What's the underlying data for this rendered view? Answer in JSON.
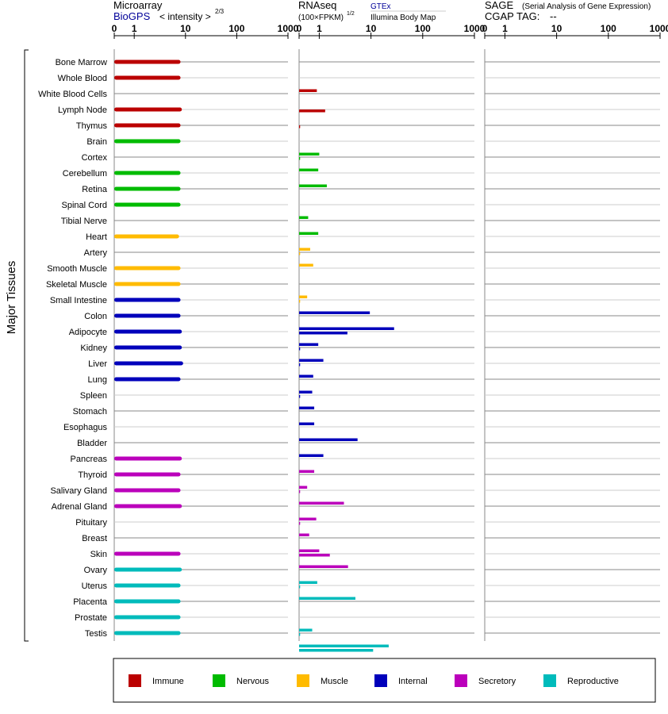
{
  "panels": {
    "microarray": {
      "title": "Microarray",
      "source": "BioGPS",
      "unit": "< intensity >",
      "unit_exp": "2/3",
      "ticks": [
        "0",
        "1",
        "10",
        "100",
        "1000"
      ]
    },
    "rnaseq": {
      "title": "RNAseq",
      "unit": "(100×FPKM)",
      "unit_exp": "1/2",
      "source_primary": "GTEx",
      "source_secondary": "Illumina Body Map",
      "ticks": [
        "0",
        "1",
        "10",
        "100",
        "1000"
      ]
    },
    "sage": {
      "title": "SAGE",
      "subtitle": "(Serial Analysis of Gene Expression)",
      "tag_label": "CGAP TAG:",
      "tag_value": "--",
      "ticks": [
        "0",
        "1",
        "10",
        "100",
        "1000"
      ]
    }
  },
  "y_axis_label": "Major Tissues",
  "colors": {
    "Immune": "#bb0000",
    "Nervous": "#00bb00",
    "Muscle": "#ffbb00",
    "Internal": "#0000bb",
    "Secretory": "#bb00bb",
    "Reproductive": "#00bbbb"
  },
  "legend": [
    "Immune",
    "Nervous",
    "Muscle",
    "Internal",
    "Secretory",
    "Reproductive"
  ],
  "chart_data": {
    "type": "bar",
    "scale": "symlog",
    "xlim": [
      0,
      1000
    ],
    "series": [
      {
        "name": "Microarray BioGPS"
      },
      {
        "name": "GTEx"
      },
      {
        "name": "Illumina Body Map"
      },
      {
        "name": "SAGE"
      }
    ],
    "tissues": [
      {
        "name": "Bone Marrow",
        "group": "Immune",
        "microarray": 8,
        "gtex": null,
        "ibm": null
      },
      {
        "name": "Whole Blood",
        "group": "Immune",
        "microarray": 8,
        "gtex": 0.88,
        "ibm": null
      },
      {
        "name": "White Blood Cells",
        "group": "Immune",
        "microarray": null,
        "gtex": null,
        "ibm": 1.3
      },
      {
        "name": "Lymph Node",
        "group": "Immune",
        "microarray": 8.5,
        "gtex": null,
        "ibm": 0.05
      },
      {
        "name": "Thymus",
        "group": "Immune",
        "microarray": 8,
        "gtex": null,
        "ibm": null
      },
      {
        "name": "Brain",
        "group": "Nervous",
        "microarray": 8,
        "gtex": 1.0,
        "ibm": 0.05
      },
      {
        "name": "Cortex",
        "group": "Nervous",
        "microarray": null,
        "gtex": 0.95,
        "ibm": null
      },
      {
        "name": "Cerebellum",
        "group": "Nervous",
        "microarray": 8,
        "gtex": 1.4,
        "ibm": null
      },
      {
        "name": "Retina",
        "group": "Nervous",
        "microarray": 8,
        "gtex": null,
        "ibm": null
      },
      {
        "name": "Spinal Cord",
        "group": "Nervous",
        "microarray": 8,
        "gtex": 0.45,
        "ibm": null
      },
      {
        "name": "Tibial Nerve",
        "group": "Nervous",
        "microarray": null,
        "gtex": 0.95,
        "ibm": null
      },
      {
        "name": "Heart",
        "group": "Muscle",
        "microarray": 7.5,
        "gtex": 0.55,
        "ibm": 0.05
      },
      {
        "name": "Artery",
        "group": "Muscle",
        "microarray": null,
        "gtex": 0.7,
        "ibm": null
      },
      {
        "name": "Smooth Muscle",
        "group": "Muscle",
        "microarray": 8,
        "gtex": null,
        "ibm": null
      },
      {
        "name": "Skeletal Muscle",
        "group": "Muscle",
        "microarray": 8,
        "gtex": 0.4,
        "ibm": 0.05
      },
      {
        "name": "Small Intestine",
        "group": "Internal",
        "microarray": 8,
        "gtex": 9.5,
        "ibm": null
      },
      {
        "name": "Colon",
        "group": "Internal",
        "microarray": 8,
        "gtex": 28,
        "ibm": 3.5
      },
      {
        "name": "Adipocyte",
        "group": "Internal",
        "microarray": 8.5,
        "gtex": 0.95,
        "ibm": 0.05
      },
      {
        "name": "Kidney",
        "group": "Internal",
        "microarray": 8.5,
        "gtex": 1.2,
        "ibm": 0.05
      },
      {
        "name": "Liver",
        "group": "Internal",
        "microarray": 9,
        "gtex": 0.7,
        "ibm": null
      },
      {
        "name": "Lung",
        "group": "Internal",
        "microarray": 8,
        "gtex": 0.65,
        "ibm": 0.05
      },
      {
        "name": "Spleen",
        "group": "Internal",
        "microarray": null,
        "gtex": 0.75,
        "ibm": null
      },
      {
        "name": "Stomach",
        "group": "Internal",
        "microarray": null,
        "gtex": 0.75,
        "ibm": null
      },
      {
        "name": "Esophagus",
        "group": "Internal",
        "microarray": null,
        "gtex": 5.5,
        "ibm": null
      },
      {
        "name": "Bladder",
        "group": "Internal",
        "microarray": null,
        "gtex": 1.2,
        "ibm": null
      },
      {
        "name": "Pancreas",
        "group": "Secretory",
        "microarray": 8.5,
        "gtex": 0.75,
        "ibm": null
      },
      {
        "name": "Thyroid",
        "group": "Secretory",
        "microarray": 8,
        "gtex": 0.4,
        "ibm": 0.05
      },
      {
        "name": "Salivary Gland",
        "group": "Secretory",
        "microarray": 8,
        "gtex": 3.0,
        "ibm": null
      },
      {
        "name": "Adrenal Gland",
        "group": "Secretory",
        "microarray": 8.5,
        "gtex": 0.85,
        "ibm": 0.05
      },
      {
        "name": "Pituitary",
        "group": "Secretory",
        "microarray": null,
        "gtex": 0.5,
        "ibm": null
      },
      {
        "name": "Breast",
        "group": "Secretory",
        "microarray": null,
        "gtex": 1.0,
        "ibm": 1.6
      },
      {
        "name": "Skin",
        "group": "Secretory",
        "microarray": 8,
        "gtex": 3.6,
        "ibm": null
      },
      {
        "name": "Ovary",
        "group": "Reproductive",
        "microarray": 8.5,
        "gtex": 0.9,
        "ibm": 0.05
      },
      {
        "name": "Uterus",
        "group": "Reproductive",
        "microarray": 8,
        "gtex": 5.0,
        "ibm": null
      },
      {
        "name": "Placenta",
        "group": "Reproductive",
        "microarray": 8,
        "gtex": null,
        "ibm": null
      },
      {
        "name": "Prostate",
        "group": "Reproductive",
        "microarray": 8,
        "gtex": 0.65,
        "ibm": 0.05
      },
      {
        "name": "Testis",
        "group": "Reproductive",
        "microarray": 8,
        "gtex": 22,
        "ibm": 11
      }
    ]
  }
}
